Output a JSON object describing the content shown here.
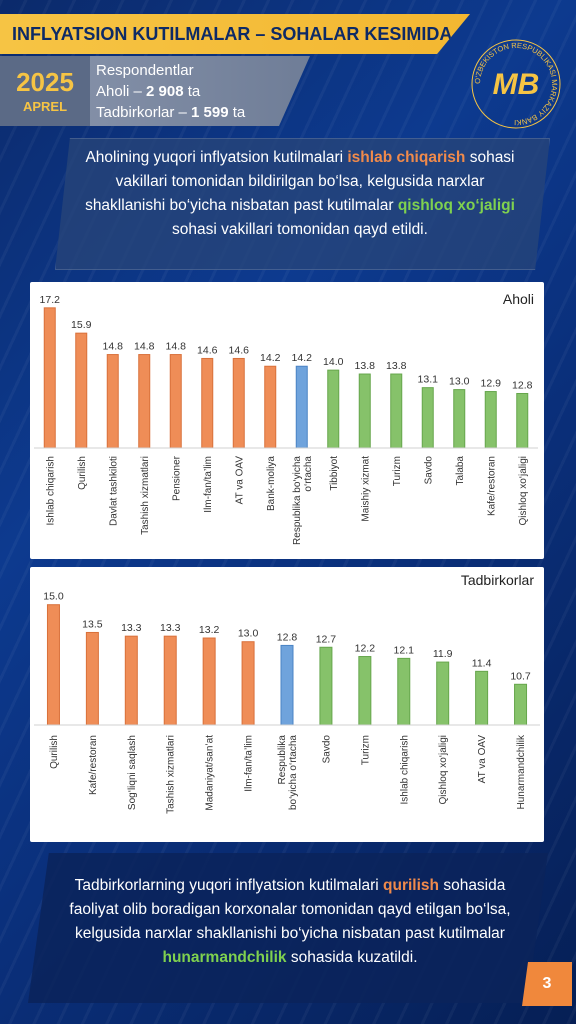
{
  "header": {
    "title": "INFLYATSION KUTILMALAR – SOHALAR KESIMIDA",
    "year": "2025",
    "month": "APREL",
    "resp_title": "Respondentlar",
    "aholi_label": "Aholi – ",
    "aholi_value": "2 908",
    "aholi_unit": " ta",
    "tadb_label": "Tadbirkorlar – ",
    "tadb_value": "1 599",
    "tadb_unit": " ta",
    "logo_ring_text": "O'ZBEKISTON RESPUBLIKASI MARKAZIY BANKI",
    "logo_letters": "MB"
  },
  "callout_top": {
    "p1": "Aholining yuqori inflyatsion kutilmalari ",
    "h1": "ishlab chiqarish",
    "p2": " sohasi vakillari tomonidan bildirilgan bo‘lsa, kelgusida narxlar shakllanishi bo‘yicha nisbatan past kutilmalar ",
    "h2": "qishloq xo‘jaligi",
    "p3": " sohasi vakillari tomonidan qayd etildi."
  },
  "colors": {
    "orange": "#ef8d57",
    "orange_edge": "#d9703a",
    "blue": "#6fa3dc",
    "blue_edge": "#4a83c4",
    "green": "#86c26a",
    "green_edge": "#66a64c",
    "label": "#333333"
  },
  "chart_data": [
    {
      "type": "bar",
      "title": "Aholi",
      "categories": [
        "Ishlab chiqarish",
        "Qurilish",
        "Davlat tashkiloti",
        "Tashish xizmatlari",
        "Pensioner",
        "Ilm-fan/ta’lim",
        "AT va OAV",
        "Bank-moliya",
        "Respublika bo‘yicha o‘rtacha",
        "Tibbiyot",
        "Maishiy xizmat",
        "Turizm",
        "Savdo",
        "Talaba",
        "Kafe/restoran",
        "Qishloq xo‘jaligi"
      ],
      "values": [
        17.2,
        15.9,
        14.8,
        14.8,
        14.8,
        14.6,
        14.6,
        14.2,
        14.2,
        14.0,
        13.8,
        13.8,
        13.1,
        13.0,
        12.9,
        12.8
      ],
      "value_labels": [
        "17.2",
        "15.9",
        "14.8",
        "14.8",
        "14.8",
        "14.6",
        "14.6",
        "14.2",
        "14.2",
        "14.0",
        "13.8",
        "13.8",
        "13.1",
        "13.0",
        "12.9",
        "12.8"
      ],
      "bar_colors": [
        "orange",
        "orange",
        "orange",
        "orange",
        "orange",
        "orange",
        "orange",
        "orange",
        "blue",
        "green",
        "green",
        "green",
        "green",
        "green",
        "green",
        "green"
      ],
      "ylim": [
        10,
        17.5
      ],
      "grid": false,
      "legend": "none"
    },
    {
      "type": "bar",
      "title": "Tadbirkorlar",
      "categories": [
        "Qurilish",
        "Kafe/restoran",
        "Sog‘liqni saqlash",
        "Tashish xizmatlari",
        "Madaniyat/san’at",
        "Ilm-fan/ta’lim",
        "Respublika bo‘yicha o‘rtacha",
        "Savdo",
        "Turizm",
        "Ishlab chiqarish",
        "Qishloq xo‘jaligi",
        "AT va OAV",
        "Hunarmandchilik"
      ],
      "values": [
        15.0,
        13.5,
        13.3,
        13.3,
        13.2,
        13.0,
        12.8,
        12.7,
        12.2,
        12.1,
        11.9,
        11.4,
        10.7
      ],
      "value_labels": [
        "15.0",
        "13.5",
        "13.3",
        "13.3",
        "13.2",
        "13.0",
        "12.8",
        "12.7",
        "12.2",
        "12.1",
        "11.9",
        "11.4",
        "10.7"
      ],
      "bar_colors": [
        "orange",
        "orange",
        "orange",
        "orange",
        "orange",
        "orange",
        "blue",
        "green",
        "green",
        "green",
        "green",
        "green",
        "green"
      ],
      "ylim": [
        8.5,
        15.2
      ],
      "grid": false,
      "legend": "none"
    }
  ],
  "callout_bottom": {
    "p1": "Tadbirkorlarning yuqori inflyatsion kutilmalari ",
    "h1": "qurilish",
    "p2": " sohasida faoliyat olib boradigan korxonalar tomonidan qayd etilgan bo‘lsa, kelgusida narxlar shakllanishi bo‘yicha nisbatan past kutilmalar ",
    "h2": "hunarmandchilik",
    "p3": " sohasida kuzatildi."
  },
  "page_number": "3"
}
